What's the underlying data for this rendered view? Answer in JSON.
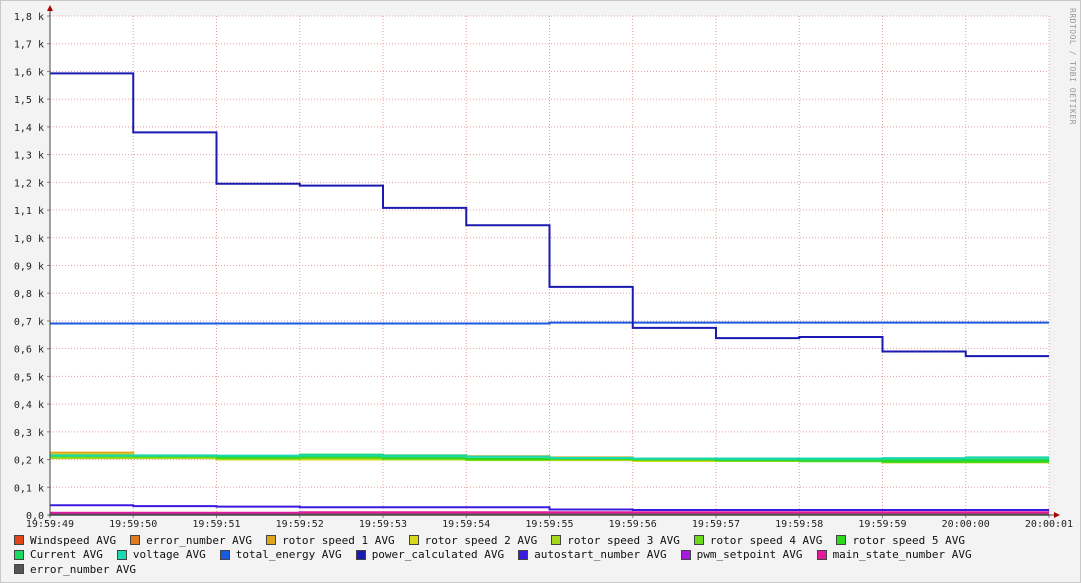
{
  "watermark": "RRDTOOL / TOBI OETIKER",
  "chart_data": {
    "type": "line",
    "x_ticks": [
      "19:59:49",
      "19:59:50",
      "19:59:51",
      "19:59:52",
      "19:59:53",
      "19:59:54",
      "19:59:55",
      "19:59:56",
      "19:59:57",
      "19:59:58",
      "19:59:59",
      "20:00:00",
      "20:00:01"
    ],
    "y_ticks": [
      "0,0",
      "0,1 k",
      "0,2 k",
      "0,3 k",
      "0,4 k",
      "0,5 k",
      "0,6 k",
      "0,7 k",
      "0,8 k",
      "0,9 k",
      "1,0 k",
      "1,1 k",
      "1,2 k",
      "1,3 k",
      "1,4 k",
      "1,5 k",
      "1,6 k",
      "1,7 k",
      "1,8 k"
    ],
    "ylim": [
      0,
      1800
    ],
    "grid": true,
    "legend_position": "bottom",
    "series": [
      {
        "name": "Windspeed AVG",
        "color": "#e0451a",
        "values": [
          5,
          5,
          5,
          5,
          5,
          5,
          5,
          5,
          5,
          5,
          5,
          5
        ]
      },
      {
        "name": "error_number AVG",
        "color": "#e07a1a",
        "values": [
          3,
          3,
          3,
          3,
          3,
          3,
          3,
          3,
          3,
          3,
          3,
          3
        ]
      },
      {
        "name": "rotor speed 1 AVG",
        "color": "#e0a61a",
        "values": [
          225,
          212,
          205,
          205,
          210,
          212,
          208,
          202,
          200,
          198,
          195,
          195
        ]
      },
      {
        "name": "rotor speed 2 AVG",
        "color": "#d8d81a",
        "values": [
          218,
          208,
          200,
          200,
          202,
          200,
          198,
          195,
          195,
          195,
          193,
          193
        ]
      },
      {
        "name": "rotor speed 3 AVG",
        "color": "#a6d81a",
        "values": [
          205,
          205,
          202,
          205,
          200,
          198,
          202,
          198,
          196,
          195,
          190,
          190
        ]
      },
      {
        "name": "rotor speed 4 AVG",
        "color": "#6ed81a",
        "values": [
          210,
          210,
          205,
          205,
          204,
          200,
          200,
          200,
          196,
          194,
          192,
          192
        ]
      },
      {
        "name": "rotor speed 5 AVG",
        "color": "#2ed81a",
        "values": [
          214,
          212,
          208,
          210,
          205,
          202,
          204,
          200,
          198,
          196,
          193,
          193
        ]
      },
      {
        "name": "Current AVG",
        "color": "#1ad860",
        "values": [
          215,
          215,
          212,
          218,
          215,
          210,
          205,
          203,
          200,
          200,
          200,
          200
        ]
      },
      {
        "name": "voltage AVG",
        "color": "#1ad8b0",
        "values": [
          214,
          214,
          214,
          214,
          212,
          210,
          206,
          204,
          204,
          204,
          205,
          208
        ]
      },
      {
        "name": "total_energy AVG",
        "color": "#1a5ae0",
        "values": [
          691,
          691,
          691,
          691,
          691,
          691,
          694,
          694,
          694,
          694,
          694,
          694
        ]
      },
      {
        "name": "power_calculated AVG",
        "color": "#1a1ab0",
        "values": [
          1593,
          1380,
          1195,
          1188,
          1108,
          1045,
          823,
          675,
          638,
          642,
          590,
          573
        ]
      },
      {
        "name": "autostart_number AVG",
        "color": "#3a1ae0",
        "values": [
          35,
          32,
          30,
          28,
          28,
          28,
          20,
          18,
          18,
          18,
          18,
          18
        ]
      },
      {
        "name": "pwm_setpoint AVG",
        "color": "#a61ae0",
        "values": [
          2,
          2,
          2,
          2,
          2,
          2,
          2,
          2,
          2,
          2,
          2,
          2
        ]
      },
      {
        "name": "main_state_number AVG",
        "color": "#e01a9a",
        "values": [
          8,
          8,
          8,
          10,
          10,
          10,
          10,
          10,
          10,
          10,
          10,
          10
        ]
      },
      {
        "name": "error_number AVG",
        "color": "#555555",
        "values": [
          1,
          1,
          1,
          1,
          1,
          1,
          1,
          1,
          1,
          1,
          1,
          1
        ]
      }
    ]
  }
}
